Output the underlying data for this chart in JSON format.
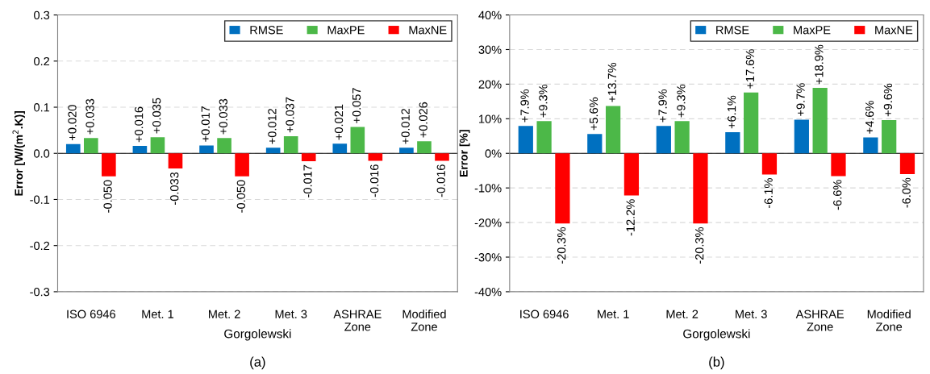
{
  "chart_data": [
    {
      "type": "bar",
      "title": "(a)",
      "ylabel": "Error [W/(m$^{2}$.K)]",
      "categories": [
        "ISO 6946",
        "Met. 1",
        "Met. 2",
        "Met. 3",
        "ASHRAE\nZone",
        "Modified\nZone"
      ],
      "annotations": [
        "Gorgolewski"
      ],
      "series": [
        {
          "name": "RMSE",
          "color": "#0070c0",
          "values": [
            0.02,
            0.016,
            0.017,
            0.012,
            0.021,
            0.012
          ],
          "value_labels": [
            "+0.020",
            "+0.016",
            "+0.017",
            "+0.012",
            "+0.021",
            "+0.012"
          ]
        },
        {
          "name": "MaxPE",
          "color": "#4cb848",
          "values": [
            0.033,
            0.035,
            0.033,
            0.037,
            0.057,
            0.026
          ],
          "value_labels": [
            "+0.033",
            "+0.035",
            "+0.033",
            "+0.037",
            "+0.057",
            "+0.026"
          ]
        },
        {
          "name": "MaxNE",
          "color": "#ff0000",
          "values": [
            -0.05,
            -0.033,
            -0.05,
            -0.017,
            -0.016,
            -0.016
          ],
          "value_labels": [
            "-0.050",
            "-0.033",
            "-0.050",
            "-0.017",
            "-0.016",
            "-0.016"
          ]
        }
      ],
      "ylim": [
        -0.3,
        0.3
      ],
      "yticks": [
        {
          "value": -0.3,
          "label": "-0.3"
        },
        {
          "value": -0.2,
          "label": "-0.2"
        },
        {
          "value": -0.1,
          "label": "-0.1"
        },
        {
          "value": 0,
          "label": "0.0"
        },
        {
          "value": 0.1,
          "label": "0.1"
        },
        {
          "value": 0.2,
          "label": "0.2"
        },
        {
          "value": 0.3,
          "label": "0.3"
        }
      ],
      "grid": "y",
      "legend": "top right"
    },
    {
      "type": "bar",
      "title": "(b)",
      "ylabel": "Error [%]",
      "categories": [
        "ISO 6946",
        "Met. 1",
        "Met. 2",
        "Met. 3",
        "ASHRAE\nZone",
        "Modified\nZone"
      ],
      "annotations": [
        "Gorgolewski"
      ],
      "series": [
        {
          "name": "RMSE",
          "color": "#0070c0",
          "values": [
            7.9,
            5.6,
            7.9,
            6.1,
            9.7,
            4.6
          ],
          "value_labels": [
            "+7.9%",
            "+5.6%",
            "+7.9%",
            "+6.1%",
            "+9.7%",
            "+4.6%"
          ]
        },
        {
          "name": "MaxPE",
          "color": "#4cb848",
          "values": [
            9.3,
            13.7,
            9.3,
            17.6,
            18.9,
            9.6
          ],
          "value_labels": [
            "+9.3%",
            "+13.7%",
            "+9.3%",
            "+17.6%",
            "+18.9%",
            "+9.6%"
          ]
        },
        {
          "name": "MaxNE",
          "color": "#ff0000",
          "values": [
            -20.3,
            -12.2,
            -20.3,
            -6.1,
            -6.6,
            -6.0
          ],
          "value_labels": [
            "-20.3%",
            "-12.2%",
            "-20.3%",
            "-6.1%",
            "-6.6%",
            "-6.0%"
          ]
        }
      ],
      "ylim": [
        -40,
        40
      ],
      "yticks": [
        {
          "value": -40,
          "label": "-40%"
        },
        {
          "value": -30,
          "label": "-30%"
        },
        {
          "value": -20,
          "label": "-20%"
        },
        {
          "value": -10,
          "label": "-10%"
        },
        {
          "value": 0,
          "label": "0%"
        },
        {
          "value": 10,
          "label": "10%"
        },
        {
          "value": 20,
          "label": "20%"
        },
        {
          "value": 30,
          "label": "30%"
        },
        {
          "value": 40,
          "label": "40%"
        }
      ],
      "grid": "y",
      "legend": "top right"
    }
  ]
}
